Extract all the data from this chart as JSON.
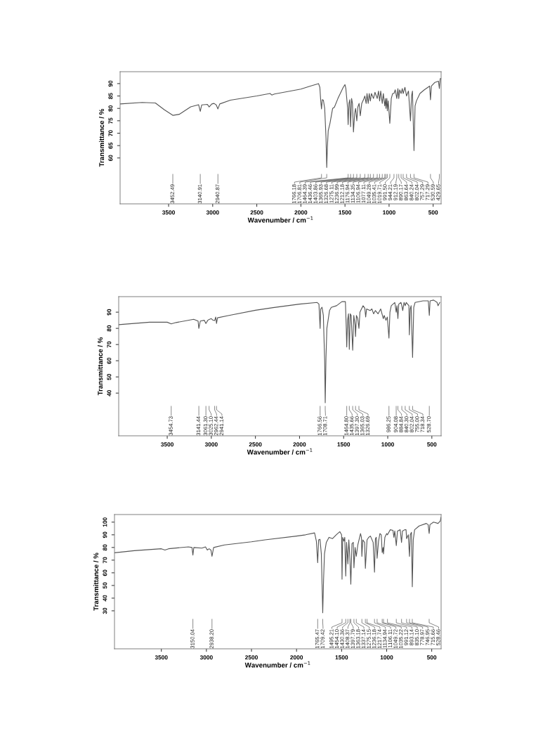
{
  "chart_data": [
    {
      "type": "line",
      "xlabel": "Wavenumber / cm$^{−1}$",
      "ylabel": "Transmittance / %",
      "xlim": [
        4050,
        410
      ],
      "ylim": [
        41.5,
        94.8
      ],
      "xticks": [
        3500,
        3000,
        2500,
        2000,
        1500,
        1000,
        500
      ],
      "yticks": [
        60,
        65,
        70,
        75,
        80,
        85,
        90
      ],
      "color": "#555555",
      "x": [
        4050,
        3800,
        3650,
        3550,
        3452.49,
        3380,
        3250,
        3160,
        3140.91,
        3125,
        3060,
        3040,
        3010,
        2985,
        2960,
        2940.87,
        2920,
        2800,
        2500,
        2350,
        2330,
        2300,
        2000,
        1900,
        1800,
        1785,
        1775,
        1766.18,
        1758,
        1745,
        1730,
        1715,
        1706.81,
        1700,
        1690,
        1670,
        1640,
        1620,
        1580,
        1520,
        1500,
        1490,
        1470,
        1464.39,
        1455,
        1445,
        1436.46,
        1425,
        1415,
        1403.86,
        1390,
        1380,
        1365.93,
        1355,
        1340,
        1326.68,
        1310,
        1290,
        1275.11,
        1260,
        1250,
        1236.99,
        1225,
        1212.18,
        1200,
        1176.94,
        1160,
        1134.35,
        1120,
        1106.94,
        1095,
        1077.11,
        1065,
        1049.28,
        1040,
        1035.41,
        1025,
        1019.71,
        1010,
        991.5,
        975,
        960,
        944.21,
        930,
        912.19,
        900,
        890.17,
        880,
        863.64,
        850,
        840.24,
        820,
        802.04,
        780,
        757.29,
        745,
        735,
        717.29,
        705,
        690,
        650,
        600,
        540,
        530.59,
        520,
        480,
        440,
        429.65,
        420,
        410
      ],
      "values": [
        81.8,
        82.4,
        82.2,
        79.5,
        77.2,
        77.6,
        80.6,
        81.5,
        78.8,
        81.4,
        81.6,
        80.6,
        81.8,
        82.0,
        81.4,
        79.8,
        81.8,
        83.3,
        85.0,
        86.0,
        85.4,
        85.8,
        87.8,
        88.9,
        90.0,
        88.5,
        83.0,
        79.8,
        83.5,
        83.3,
        80,
        68,
        56.2,
        64,
        71,
        74,
        80,
        80.5,
        84,
        88.5,
        89.6,
        88,
        80,
        73.5,
        82,
        83.5,
        72.6,
        84,
        82,
        70.5,
        78,
        80,
        75,
        80.5,
        82,
        77,
        82,
        83.5,
        85,
        82,
        86,
        82,
        86,
        83,
        86,
        84,
        86.5,
        84,
        87,
        83,
        87,
        82,
        86,
        81,
        84,
        80,
        84,
        79,
        83,
        74,
        84,
        86,
        86,
        87.5,
        84,
        88,
        84,
        87.5,
        86,
        88,
        86,
        88.5,
        85,
        87,
        75,
        85,
        87,
        63,
        81,
        83,
        86,
        87.5,
        89,
        83.5,
        89,
        90.5,
        91,
        88,
        92,
        92
      ],
      "annotations": [
        {
          "text": "3452.49",
          "x": 3452.49
        },
        {
          "text": "3140.91",
          "x": 3140.91
        },
        {
          "text": "2940.87",
          "x": 2940.87
        },
        {
          "text": "1766.18",
          "x": 1766.18
        },
        {
          "text": "1706.81",
          "x": 1706.81
        },
        {
          "text": "1464.39",
          "x": 1464.39
        },
        {
          "text": "1436.46",
          "x": 1436.46
        },
        {
          "text": "1403.86",
          "x": 1403.86
        },
        {
          "text": "1365.93",
          "x": 1365.93
        },
        {
          "text": "1326.68",
          "x": 1326.68
        },
        {
          "text": "1275.11",
          "x": 1275.11
        },
        {
          "text": "1236.99",
          "x": 1236.99
        },
        {
          "text": "1212.18",
          "x": 1212.18
        },
        {
          "text": "1176.94",
          "x": 1176.94
        },
        {
          "text": "1134.35",
          "x": 1134.35
        },
        {
          "text": "1106.94",
          "x": 1106.94
        },
        {
          "text": "1077.11",
          "x": 1077.11
        },
        {
          "text": "1049.28",
          "x": 1049.28
        },
        {
          "text": "1035.41",
          "x": 1035.41
        },
        {
          "text": "1019.71",
          "x": 1019.71
        },
        {
          "text": "991.50",
          "x": 991.5
        },
        {
          "text": "944.21",
          "x": 944.21
        },
        {
          "text": "912.19",
          "x": 912.19
        },
        {
          "text": "890.17",
          "x": 890.17
        },
        {
          "text": "863.64",
          "x": 863.64
        },
        {
          "text": "840.24",
          "x": 840.24
        },
        {
          "text": "802.04",
          "x": 802.04
        },
        {
          "text": "757.29",
          "x": 757.29
        },
        {
          "text": "717.29",
          "x": 717.29
        },
        {
          "text": "530.59",
          "x": 530.59
        },
        {
          "text": "429.65",
          "x": 429.65
        }
      ]
    },
    {
      "type": "line",
      "xlabel": "Wavenumber / cm$^{−1}$",
      "ylabel": "Transmittance / %",
      "xlim": [
        4050,
        395
      ],
      "ylim": [
        13.6,
        99.6
      ],
      "xticks": [
        3500,
        3000,
        2500,
        2000,
        1500,
        1000,
        500
      ],
      "yticks": [
        40,
        50,
        60,
        70,
        80,
        90
      ],
      "color": "#555555",
      "x": [
        4050,
        3700,
        3500,
        3454.73,
        3400,
        3200,
        3150,
        3141.44,
        3125,
        3080,
        3061.3,
        3040,
        3025.1,
        3000,
        2985,
        2962.44,
        2950,
        2941.14,
        2930,
        2800,
        2500,
        2300,
        2000,
        1800,
        1780,
        1766.56,
        1760,
        1745,
        1730,
        1715,
        1708.71,
        1700,
        1690,
        1660,
        1640,
        1580,
        1520,
        1480,
        1470,
        1464.8,
        1455,
        1445,
        1435.66,
        1425,
        1415,
        1397.3,
        1385,
        1370,
        1365.03,
        1355,
        1340,
        1326.69,
        1315,
        1280,
        1260,
        1250,
        1240,
        1200,
        1180,
        1160,
        1140,
        1110,
        1080,
        1050,
        1040,
        1020,
        1005,
        986.25,
        975,
        960,
        920,
        904.08,
        895,
        884.84,
        875,
        850,
        840.3,
        830,
        815,
        802.04,
        790,
        760,
        755.0,
        745,
        735,
        718.34,
        705,
        690,
        600,
        540,
        528.7,
        520,
        480,
        440,
        430,
        410
      ],
      "values": [
        82.3,
        83.8,
        83.8,
        82.8,
        83.6,
        85.6,
        84.5,
        80,
        84.5,
        85,
        83,
        85,
        85.5,
        86,
        85.2,
        84.8,
        87,
        83,
        86.5,
        88,
        91.2,
        92.8,
        95,
        96,
        95,
        80,
        92,
        93,
        88,
        60,
        34,
        62,
        80,
        91,
        93,
        94,
        96.5,
        96.5,
        80,
        68.5,
        85,
        89,
        67,
        89,
        88,
        66.5,
        88,
        82,
        75,
        88,
        86,
        80,
        90,
        94,
        92.5,
        87,
        92,
        91,
        92,
        89,
        91,
        89,
        92,
        86,
        88,
        85,
        87,
        74,
        90,
        94,
        96,
        90,
        94,
        86,
        95,
        96,
        94,
        91,
        96,
        94,
        96,
        94,
        76,
        92,
        94,
        62,
        93,
        96,
        97,
        97,
        88,
        97,
        97.5,
        96,
        94,
        96
      ],
      "annotations": [
        {
          "text": "3454.73",
          "x": 3454.73
        },
        {
          "text": "3141.44",
          "x": 3141.44
        },
        {
          "text": "3061.30",
          "x": 3061.3
        },
        {
          "text": "3025.10",
          "x": 3025.1
        },
        {
          "text": "2962.44",
          "x": 2962.44
        },
        {
          "text": "2941.14",
          "x": 2941.14
        },
        {
          "text": "1766.56",
          "x": 1766.56
        },
        {
          "text": "1708.71",
          "x": 1708.71
        },
        {
          "text": "1464.80",
          "x": 1464.8
        },
        {
          "text": "1435.66",
          "x": 1435.66
        },
        {
          "text": "1397.30",
          "x": 1397.3
        },
        {
          "text": "1365.03",
          "x": 1365.03
        },
        {
          "text": "1326.69",
          "x": 1326.69
        },
        {
          "text": "986.25",
          "x": 986.25
        },
        {
          "text": "904.08",
          "x": 904.08
        },
        {
          "text": "884.84",
          "x": 884.84
        },
        {
          "text": "840.30",
          "x": 840.3
        },
        {
          "text": "802.04",
          "x": 802.04
        },
        {
          "text": "755.00",
          "x": 755.0
        },
        {
          "text": "718.34",
          "x": 718.34
        },
        {
          "text": "528.70",
          "x": 528.7
        }
      ]
    },
    {
      "type": "line",
      "xlabel": "Wavenumber / cm$^{−1}$",
      "ylabel": "Transmittance / %",
      "xlim": [
        4020,
        396
      ],
      "ylim": [
        0,
        106
      ],
      "xticks": [
        3500,
        3000,
        2500,
        2000,
        1500,
        1000,
        500
      ],
      "yticks": [
        30,
        40,
        50,
        60,
        70,
        80,
        90,
        100
      ],
      "color": "#555555",
      "x": [
        4020,
        3800,
        3500,
        3460,
        3420,
        3200,
        3160,
        3150.04,
        3140,
        3050,
        3010,
        2990,
        2970,
        2950,
        2938.2,
        2920,
        2800,
        2500,
        2350,
        2000,
        1900,
        1800,
        1780,
        1765.47,
        1755,
        1740,
        1725,
        1709.42,
        1700,
        1690,
        1670,
        1640,
        1600,
        1560,
        1520,
        1500,
        1495.21,
        1488,
        1475,
        1465,
        1454.1,
        1445,
        1430.36,
        1420,
        1408.37,
        1397.79,
        1385,
        1370,
        1363.18,
        1350,
        1337.14,
        1320,
        1290,
        1280,
        1275.15,
        1265,
        1245,
        1236.18,
        1217.74,
        1200,
        1180,
        1150,
        1134.94,
        1125,
        1115,
        1106.11,
        1090,
        1075,
        1060,
        1049.72,
        1040,
        1035.22,
        1020,
        1000,
        991.12,
        960,
        930,
        920,
        910,
        893.14,
        880,
        850,
        835.1,
        825,
        800,
        785,
        778.97,
        760,
        746.95,
        738,
        725,
        715.66,
        705,
        690,
        640,
        560,
        540,
        528.46,
        520,
        480,
        430,
        405,
        396
      ],
      "values": [
        75.8,
        77.5,
        79,
        78,
        79,
        80.5,
        80,
        74,
        80,
        79.5,
        80.5,
        78,
        79,
        78,
        73,
        80,
        82,
        84.5,
        86,
        89,
        90,
        91.5,
        85,
        68,
        86,
        86.5,
        75,
        28.5,
        55,
        75,
        84,
        88,
        87,
        90,
        92.5,
        90,
        55,
        88,
        85,
        88,
        57.5,
        84,
        67,
        86,
        72,
        51,
        83,
        84,
        64,
        80,
        73,
        82,
        91,
        88,
        73,
        86,
        84,
        63.5,
        86,
        88,
        89,
        84,
        60.5,
        87,
        88,
        71.5,
        85,
        91,
        90,
        76,
        80,
        75,
        88,
        91,
        90,
        94,
        93.5,
        88,
        93,
        81.5,
        93,
        94,
        84,
        93,
        94,
        94,
        87,
        90,
        73,
        90,
        92,
        49,
        86,
        94,
        97,
        99,
        98,
        91,
        98,
        100,
        99,
        101,
        104
      ],
      "annotations": [
        {
          "text": "3150.04",
          "x": 3150.04
        },
        {
          "text": "2938.20",
          "x": 2938.2
        },
        {
          "text": "1765.47",
          "x": 1765.47
        },
        {
          "text": "1709.42",
          "x": 1709.42
        },
        {
          "text": "1495.21",
          "x": 1495.21
        },
        {
          "text": "1454.10",
          "x": 1454.1
        },
        {
          "text": "1430.36",
          "x": 1430.36
        },
        {
          "text": "1408.37",
          "x": 1408.37
        },
        {
          "text": "1397.79",
          "x": 1397.79
        },
        {
          "text": "1363.18",
          "x": 1363.18
        },
        {
          "text": "1337.14",
          "x": 1337.14
        },
        {
          "text": "1275.15",
          "x": 1275.15
        },
        {
          "text": "1236.18",
          "x": 1236.18
        },
        {
          "text": "1217.74",
          "x": 1217.74
        },
        {
          "text": "1134.94",
          "x": 1134.94
        },
        {
          "text": "1106.11",
          "x": 1106.11
        },
        {
          "text": "1049.72",
          "x": 1049.72
        },
        {
          "text": "1035.22",
          "x": 1035.22
        },
        {
          "text": "991.12",
          "x": 991.12
        },
        {
          "text": "893.14",
          "x": 893.14
        },
        {
          "text": "835.10",
          "x": 835.1
        },
        {
          "text": "778.97",
          "x": 778.97
        },
        {
          "text": "746.95",
          "x": 746.95
        },
        {
          "text": "715.66",
          "x": 715.66
        },
        {
          "text": "528.46",
          "x": 528.46
        }
      ]
    }
  ]
}
